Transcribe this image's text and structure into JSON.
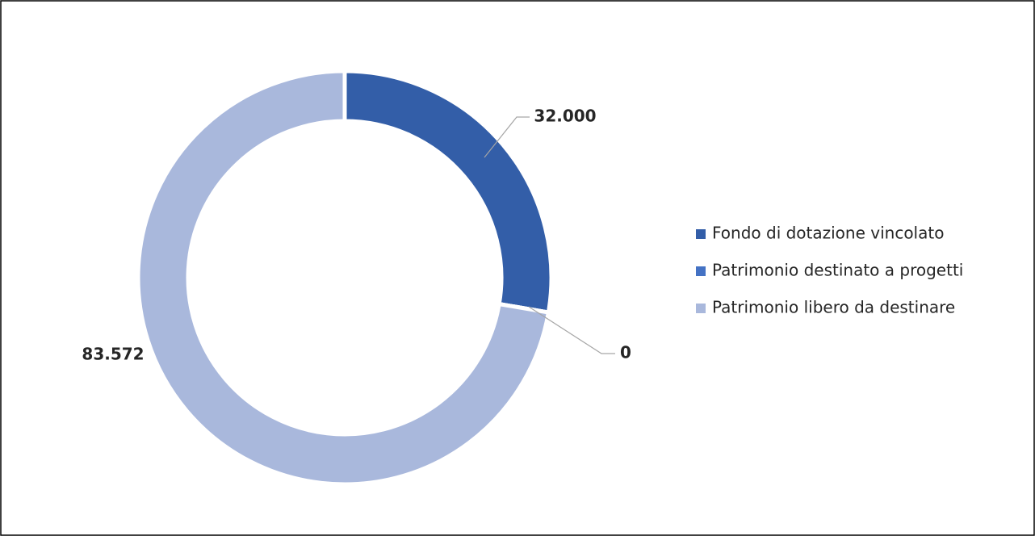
{
  "chart_data": {
    "type": "donut",
    "categories": [
      "Fondo di dotazione vincolato",
      "Patrimonio destinato a progetti",
      "Patrimonio libero da destinare"
    ],
    "values": [
      32000,
      0,
      83572
    ],
    "value_labels": [
      "32.000",
      "0",
      "83.572"
    ],
    "colors": [
      "#335ea8",
      "#4472c4",
      "#a9b8dc"
    ],
    "legend": "right"
  }
}
